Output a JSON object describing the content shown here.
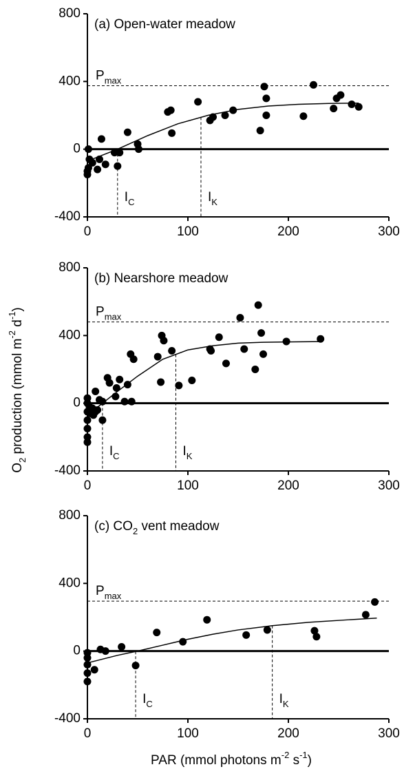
{
  "chart_data": [
    {
      "type": "scatter",
      "title": "(a) Open-water meadow",
      "xlim": [
        0,
        300
      ],
      "xticks": [
        0,
        100,
        200,
        300
      ],
      "ylim": [
        -400,
        800
      ],
      "yticks": [
        -400,
        0,
        400,
        800
      ],
      "pmax": 375,
      "pmax_label": "P",
      "pmax_sub": "max",
      "ic": 30,
      "ic_label": "I",
      "ic_sub": "C",
      "ik": 113,
      "ik_label": "I",
      "ik_sub": "K",
      "series": [
        {
          "style": "points",
          "color": "#000000",
          "x": [
            0,
            0,
            1,
            2,
            1,
            5,
            10,
            12,
            14,
            18,
            27,
            30,
            32,
            40,
            50,
            51,
            80,
            83,
            84,
            110,
            122,
            125,
            137,
            145,
            172,
            176,
            178,
            178,
            215,
            225,
            245,
            248,
            252,
            263,
            270
          ],
          "values": [
            -130,
            -150,
            -110,
            -60,
            0,
            -80,
            -120,
            -60,
            60,
            -90,
            -20,
            -100,
            -20,
            100,
            30,
            0,
            220,
            230,
            95,
            280,
            170,
            190,
            200,
            230,
            110,
            370,
            300,
            200,
            195,
            380,
            240,
            300,
            320,
            265,
            250
          ]
        },
        {
          "style": "line",
          "color": "#000000",
          "x": [
            0,
            30,
            60,
            90,
            120,
            150,
            180,
            210,
            240,
            270
          ],
          "values": [
            -70,
            0,
            80,
            150,
            200,
            235,
            255,
            265,
            270,
            272
          ]
        }
      ]
    },
    {
      "type": "scatter",
      "title": "(b) Nearshore meadow",
      "xlim": [
        0,
        300
      ],
      "xticks": [
        0,
        100,
        200,
        300
      ],
      "ylim": [
        -400,
        800
      ],
      "yticks": [
        -400,
        0,
        400,
        800
      ],
      "pmax": 480,
      "pmax_label": "P",
      "pmax_sub": "max",
      "ic": 15,
      "ic_label": "I",
      "ic_sub": "C",
      "ik": 88,
      "ik_label": "I",
      "ik_sub": "K",
      "y_label": [
        {
          "text": "O"
        },
        {
          "text": "2",
          "shift": "sub"
        },
        {
          "text": " production (mmol m"
        },
        {
          "text": "-2",
          "shift": "super"
        },
        {
          "text": " d"
        },
        {
          "text": "-1",
          "shift": "super"
        },
        {
          "text": ")"
        }
      ],
      "series": [
        {
          "style": "points",
          "color": "#000000",
          "x": [
            0,
            0,
            0,
            0,
            0,
            0,
            0,
            2,
            3,
            5,
            6,
            8,
            8,
            10,
            12,
            15,
            15,
            20,
            22,
            28,
            29,
            32,
            37,
            40,
            43,
            44,
            46,
            70,
            73,
            74,
            76,
            84,
            91,
            104,
            122,
            123,
            131,
            138,
            152,
            156,
            167,
            170,
            173,
            175,
            198,
            232
          ],
          "values": [
            -230,
            -200,
            -150,
            -100,
            -50,
            0,
            30,
            -20,
            -60,
            -30,
            -70,
            70,
            -50,
            -40,
            20,
            10,
            -100,
            150,
            120,
            40,
            90,
            140,
            10,
            110,
            290,
            10,
            260,
            275,
            125,
            400,
            370,
            310,
            105,
            135,
            320,
            310,
            390,
            235,
            505,
            320,
            200,
            580,
            415,
            290,
            365,
            380
          ]
        },
        {
          "style": "line",
          "color": "#000000",
          "x": [
            0,
            15,
            30,
            50,
            75,
            100,
            125,
            150,
            175,
            200,
            232
          ],
          "values": [
            -70,
            0,
            70,
            160,
            260,
            315,
            340,
            355,
            360,
            362,
            364
          ]
        }
      ]
    },
    {
      "type": "scatter",
      "title": "(c) CO",
      "title_sub": "2",
      "title_end": " vent meadow",
      "xlim": [
        0,
        300
      ],
      "xticks": [
        0,
        100,
        200,
        300
      ],
      "ylim": [
        -400,
        800
      ],
      "yticks": [
        -400,
        0,
        400,
        800
      ],
      "pmax": 295,
      "pmax_label": "P",
      "pmax_sub": "max",
      "ic": 48,
      "ic_label": "I",
      "ic_sub": "C",
      "ik": 184,
      "ik_label": "I",
      "ik_sub": "K",
      "x_label": [
        {
          "text": "PAR (mmol photons m"
        },
        {
          "text": "-2",
          "shift": "super"
        },
        {
          "text": " s"
        },
        {
          "text": "-1",
          "shift": "super"
        },
        {
          "text": ")"
        }
      ],
      "series": [
        {
          "style": "points",
          "color": "#000000",
          "x": [
            0,
            0,
            0,
            0,
            0,
            7,
            13,
            18,
            34,
            48,
            69,
            95,
            119,
            158,
            179,
            226,
            228,
            277,
            286
          ],
          "values": [
            -180,
            -130,
            -80,
            -40,
            -10,
            -110,
            10,
            0,
            25,
            -85,
            110,
            55,
            185,
            95,
            125,
            120,
            85,
            215,
            290
          ]
        },
        {
          "style": "line",
          "color": "#000000",
          "x": [
            0,
            30,
            50,
            75,
            100,
            125,
            150,
            184,
            220,
            260,
            288
          ],
          "values": [
            -70,
            -25,
            0,
            35,
            70,
            100,
            125,
            150,
            170,
            185,
            195
          ]
        }
      ]
    }
  ]
}
